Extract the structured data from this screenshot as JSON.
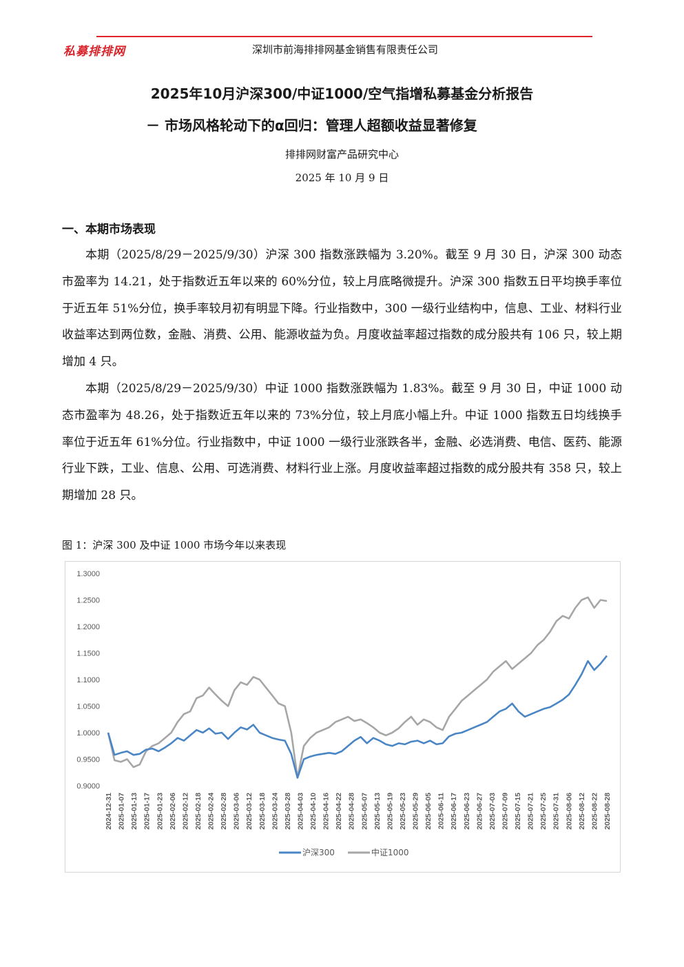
{
  "header": {
    "logo_text": "私募排排网",
    "company": "深圳市前海排排网基金销售有限责任公司",
    "accent_color": "#e3232c"
  },
  "title": {
    "line1": "2025年10月沪深300/中证1000/空气指增私募基金分析报告",
    "line2": "－ 市场风格轮动下的α回归：管理人超额收益显著修复"
  },
  "org": "排排网财富产品研究中心",
  "date": "2025 年 10 月 9 日",
  "section1": {
    "heading": "一、本期市场表现",
    "paragraphs": [
      "本期（2025/8/29－2025/9/30）沪深 300 指数涨跌幅为 3.20%。截至 9 月 30 日，沪深 300 动态市盈率为 14.21，处于指数近五年以来的 60%分位，较上月底略微提升。沪深 300 指数五日平均换手率位于近五年 51%分位，换手率较月初有明显下降。行业指数中，300 一级行业结构中，信息、工业、材料行业收益率达到两位数，金融、消费、公用、能源收益为负。月度收益率超过指数的成分股共有 106 只，较上期增加 4 只。",
      "本期（2025/8/29－2025/9/30）中证 1000 指数涨跌幅为 1.83%。截至 9 月 30 日，中证 1000 动态市盈率为 48.26，处于指数近五年以来的 73%分位，较上月底小幅上升。中证 1000 指数五日均线换手率位于近五年 61%分位。行业指数中，中证 1000 一级行业涨跌各半，金融、必选消费、电信、医药、能源行业下跌，工业、信息、公用、可选消费、材料行业上涨。月度收益率超过指数的成分股共有 358 只，较上期增加 28 只。"
    ]
  },
  "figure1": {
    "caption": "图 1：沪深 300 及中证 1000 市场今年以来表现"
  },
  "chart_data": {
    "type": "line",
    "title": "",
    "xlabel": "",
    "ylabel": "",
    "ylim": [
      0.9,
      1.3
    ],
    "yticks": [
      "1.3000",
      "1.2500",
      "1.2000",
      "1.1500",
      "1.1000",
      "1.0500",
      "1.0000",
      "0.9500",
      "0.9000"
    ],
    "xticks": [
      "2024-12-31",
      "2025-01-07",
      "2025-01-13",
      "2025-01-17",
      "2025-01-23",
      "2025-02-06",
      "2025-02-12",
      "2025-02-18",
      "2025-02-24",
      "2025-02-28",
      "2025-03-06",
      "2025-03-12",
      "2025-03-18",
      "2025-03-24",
      "2025-03-28",
      "2025-04-03",
      "2025-04-10",
      "2025-04-16",
      "2025-04-22",
      "2025-04-28",
      "2025-05-07",
      "2025-05-13",
      "2025-05-19",
      "2025-05-23",
      "2025-05-29",
      "2025-06-05",
      "2025-06-11",
      "2025-06-17",
      "2025-06-23",
      "2025-06-27",
      "2025-07-03",
      "2025-07-09",
      "2025-07-15",
      "2025-07-21",
      "2025-07-25",
      "2025-07-31",
      "2025-08-06",
      "2025-08-12",
      "2025-08-22",
      "2025-08-28"
    ],
    "grid": false,
    "legend_position": "bottom",
    "series": [
      {
        "name": "沪深300",
        "color": "#4a86c5",
        "values": [
          1.0,
          0.958,
          0.962,
          0.965,
          0.958,
          0.96,
          0.968,
          0.97,
          0.965,
          0.972,
          0.98,
          0.99,
          0.985,
          0.995,
          1.005,
          1.0,
          1.008,
          0.998,
          1.0,
          0.988,
          1.0,
          1.01,
          1.006,
          1.015,
          1.0,
          0.995,
          0.99,
          0.987,
          0.985,
          0.96,
          0.915,
          0.95,
          0.955,
          0.958,
          0.96,
          0.962,
          0.96,
          0.965,
          0.975,
          0.985,
          0.992,
          0.98,
          0.99,
          0.985,
          0.978,
          0.975,
          0.98,
          0.978,
          0.983,
          0.985,
          0.98,
          0.985,
          0.978,
          0.98,
          0.993,
          0.998,
          1.0,
          1.005,
          1.01,
          1.015,
          1.02,
          1.03,
          1.04,
          1.045,
          1.055,
          1.04,
          1.03,
          1.035,
          1.04,
          1.045,
          1.048,
          1.055,
          1.062,
          1.072,
          1.09,
          1.11,
          1.135,
          1.118,
          1.13,
          1.145
        ]
      },
      {
        "name": "中证1000",
        "color": "#a6a6a6",
        "values": [
          1.0,
          0.948,
          0.945,
          0.95,
          0.935,
          0.94,
          0.965,
          0.975,
          0.98,
          0.99,
          1.0,
          1.02,
          1.035,
          1.04,
          1.065,
          1.07,
          1.085,
          1.072,
          1.06,
          1.05,
          1.08,
          1.095,
          1.09,
          1.105,
          1.1,
          1.085,
          1.07,
          1.055,
          1.05,
          1.0,
          0.915,
          0.975,
          0.99,
          1.0,
          1.005,
          1.01,
          1.02,
          1.025,
          1.03,
          1.022,
          1.025,
          1.018,
          1.01,
          1.0,
          0.995,
          1.0,
          1.008,
          1.02,
          1.03,
          1.015,
          1.025,
          1.02,
          1.01,
          1.005,
          1.03,
          1.045,
          1.06,
          1.07,
          1.08,
          1.09,
          1.1,
          1.115,
          1.125,
          1.135,
          1.12,
          1.13,
          1.14,
          1.15,
          1.165,
          1.175,
          1.19,
          1.21,
          1.22,
          1.215,
          1.235,
          1.25,
          1.255,
          1.235,
          1.25,
          1.248
        ]
      }
    ]
  }
}
